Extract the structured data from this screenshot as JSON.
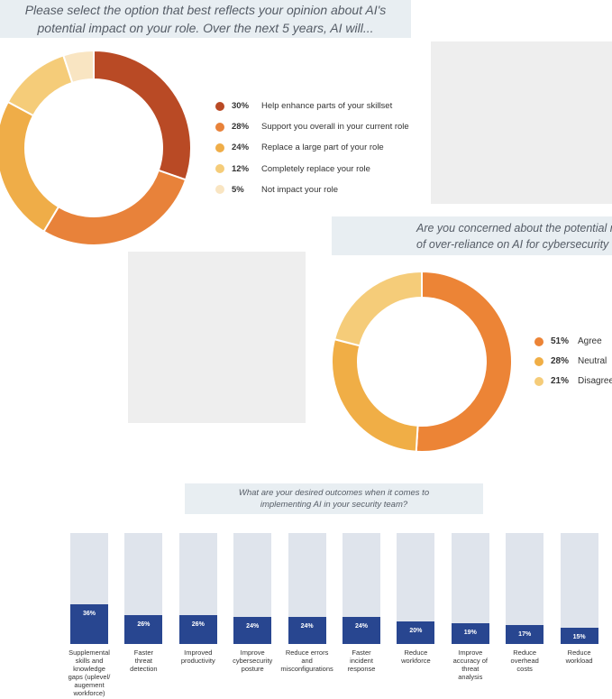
{
  "q1": {
    "line1": "Please select the option that best reflects your opinion about AI's",
    "line2": "potential impact on your role. Over the next 5 years, AI will..."
  },
  "q2": {
    "line1": "Are you concerned about the potential r",
    "line2": "of over-reliance on AI for cybersecurity"
  },
  "q3": {
    "line1": "What are your desired outcomes when it comes to",
    "line2": "implementing AI in your security team?"
  },
  "chart_data": [
    {
      "type": "pie",
      "donut": true,
      "labels": [
        "Help enhance parts of your skillset",
        "Support you overall in your current role",
        "Replace a large part of your role",
        "Completely replace your role",
        "Not impact your role"
      ],
      "values": [
        30,
        28,
        24,
        12,
        5
      ],
      "value_labels": [
        "30%",
        "28%",
        "24%",
        "12%",
        "5%"
      ],
      "colors": [
        "#b94a25",
        "#e8823a",
        "#efad48",
        "#f5cc79",
        "#f9e5c2"
      ],
      "legend_position": "right"
    },
    {
      "type": "pie",
      "donut": true,
      "labels": [
        "Agree",
        "Neutral",
        "Disagree"
      ],
      "values": [
        51,
        28,
        21
      ],
      "value_labels": [
        "51%",
        "28%",
        "21%"
      ],
      "colors": [
        "#ec8436",
        "#f0ae46",
        "#f5cc79"
      ],
      "legend_position": "right"
    },
    {
      "type": "bar",
      "categories": [
        "Supplemental skills and knowledge gaps (uplevel/ augement workforce)",
        "Faster threat detection",
        "Improved productivity",
        "Improve cybersecurity posture",
        "Reduce errors and misconfigurations",
        "Faster incident response",
        "Reduce workforce",
        "Improve accuracy of threat analysis",
        "Reduce overhead costs",
        "Reduce workload"
      ],
      "category_lines": [
        [
          "Supplemental",
          "skills and",
          "knowledge",
          "gaps (uplevel/",
          "augement",
          "workforce)"
        ],
        [
          "Faster",
          "threat",
          "detection"
        ],
        [
          "Improved",
          "productivity"
        ],
        [
          "Improve",
          "cybersecurity",
          "posture"
        ],
        [
          "Reduce errors",
          "and",
          "misconfigurations"
        ],
        [
          "Faster",
          "incident",
          "response"
        ],
        [
          "Reduce",
          "workforce"
        ],
        [
          "Improve",
          "accuracy of",
          "threat",
          "analysis"
        ],
        [
          "Reduce",
          "overhead",
          "costs"
        ],
        [
          "Reduce",
          "workload"
        ]
      ],
      "values": [
        36,
        26,
        26,
        24,
        24,
        24,
        20,
        19,
        17,
        15
      ],
      "value_labels": [
        "36%",
        "26%",
        "26%",
        "24%",
        "24%",
        "24%",
        "20%",
        "19%",
        "17%",
        "15%"
      ],
      "ylim": [
        0,
        100
      ],
      "bar_color": "#284690",
      "track_color": "#dfe4ec"
    }
  ]
}
